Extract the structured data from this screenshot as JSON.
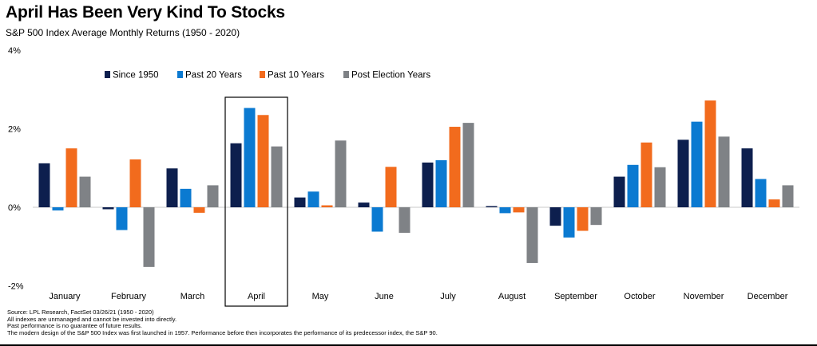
{
  "header": {
    "title": "April Has Been Very Kind To Stocks",
    "subtitle": "S&P 500 Index Average Monthly Returns (1950 - 2020)"
  },
  "footnotes": [
    "Source: LPL Research, FactSet 03/26/21  (1950 - 2020)",
    "All indexes are unmanaged and cannot be invested into directly.",
    "Past performance is no guarantee of future results.",
    "The modern design of the S&P 500 Index was first launched in 1957. Performance before then incorporates the performance of its  predecessor index, the S&P 90."
  ],
  "chart_data": {
    "type": "bar",
    "title": "April Has Been Very Kind To Stocks",
    "subtitle": "S&P 500 Index Average Monthly Returns (1950 - 2020)",
    "categories": [
      "January",
      "February",
      "March",
      "April",
      "May",
      "June",
      "July",
      "August",
      "September",
      "October",
      "November",
      "December"
    ],
    "series": [
      {
        "name": "Since 1950",
        "color": "#0d1f4e",
        "values": [
          1.12,
          -0.05,
          0.99,
          1.63,
          0.25,
          0.12,
          1.14,
          0.03,
          -0.47,
          0.78,
          1.72,
          1.5
        ]
      },
      {
        "name": "Past 20 Years",
        "color": "#0b7ad1",
        "values": [
          -0.08,
          -0.58,
          0.47,
          2.53,
          0.4,
          -0.62,
          1.2,
          -0.15,
          -0.77,
          1.08,
          2.18,
          0.72
        ]
      },
      {
        "name": "Past 10 Years",
        "color": "#f26b1d",
        "values": [
          1.5,
          1.22,
          -0.14,
          2.35,
          0.05,
          1.03,
          2.05,
          -0.13,
          -0.6,
          1.65,
          2.72,
          0.2
        ]
      },
      {
        "name": "Post Election Years",
        "color": "#7f8286",
        "values": [
          0.78,
          -1.52,
          0.56,
          1.55,
          1.7,
          -0.65,
          2.15,
          -1.42,
          -0.45,
          1.02,
          1.8,
          0.56
        ]
      }
    ],
    "y_ticks": [
      "4%",
      "2%",
      "0%",
      "-2%"
    ],
    "y_tick_values": [
      4,
      2,
      0,
      -2
    ],
    "ylim": [
      -2,
      4
    ],
    "highlight_category": "April",
    "legend_position": "top-left",
    "grid": false
  }
}
